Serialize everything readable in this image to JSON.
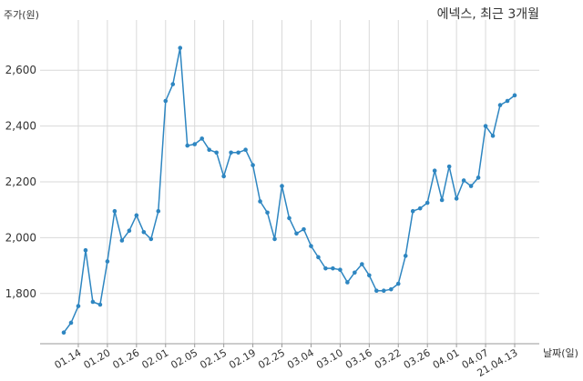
{
  "chart_data": {
    "type": "line",
    "title": "에넥스, 최근 3개월",
    "ylabel": "주가(원)",
    "xlabel": "날짜(일)",
    "ylim": [
      1620,
      2780
    ],
    "yticks": [
      1800,
      2000,
      2200,
      2400,
      2600
    ],
    "ytick_labels": [
      "1,800",
      "2,000",
      "2,200",
      "2,400",
      "2,600"
    ],
    "xtick_labels": [
      "01.14",
      "01.20",
      "01.26",
      "02.01",
      "02.05",
      "02.15",
      "02.19",
      "02.25",
      "03.04",
      "03.10",
      "03.16",
      "03.22",
      "03.26",
      "04.01",
      "04.07",
      "21.04.13"
    ],
    "xtick_index": [
      3,
      7,
      11,
      15,
      19,
      23,
      27,
      31,
      35,
      39,
      43,
      47,
      51,
      55,
      59,
      63
    ],
    "grid": true,
    "line_color": "#2e86c1",
    "series": [
      {
        "values": [
          1660,
          1695,
          1755,
          1955,
          1770,
          1760,
          1915,
          2095,
          1990,
          2025,
          2080,
          2020,
          1995,
          2095,
          2490,
          2550,
          2680,
          2330,
          2335,
          2355,
          2315,
          2305,
          2220,
          2305,
          2305,
          2315,
          2260,
          2130,
          2090,
          1995,
          2185,
          2070,
          2015,
          2030,
          1970,
          1930,
          1890,
          1890,
          1885,
          1840,
          1875,
          1905,
          1865,
          1810,
          1810,
          1815,
          1835,
          1935,
          2095,
          2105,
          2125,
          2240,
          2135,
          2255,
          2140,
          2205,
          2185,
          2215,
          2400,
          2365,
          2475,
          2490,
          2510
        ]
      }
    ]
  }
}
